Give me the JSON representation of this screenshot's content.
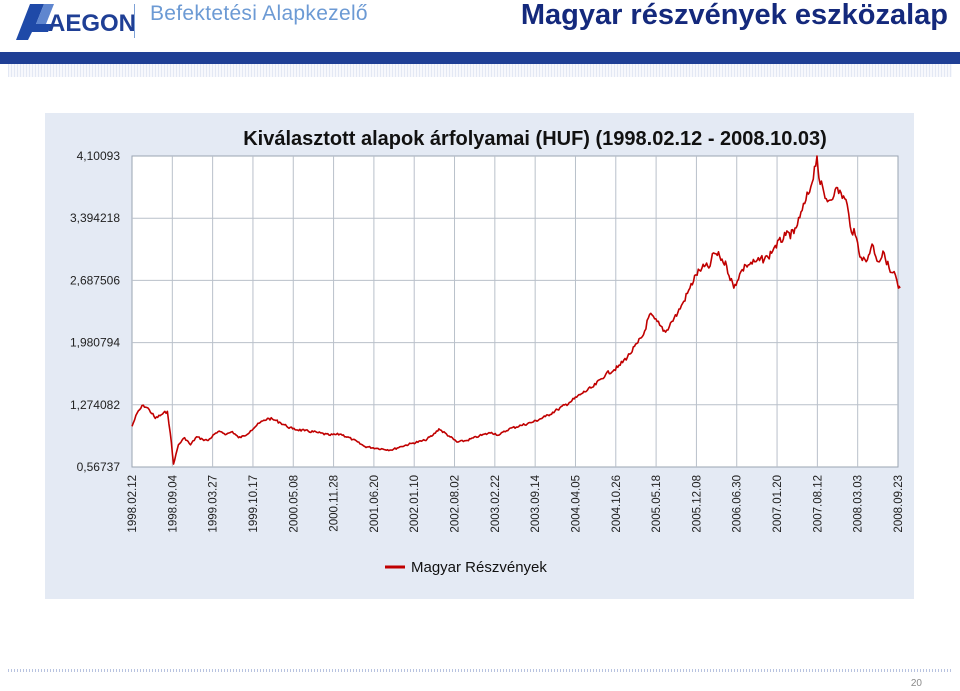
{
  "header": {
    "logo_text": "AEGON",
    "company": "Befektetési Alapkezelő",
    "title": "Magyar részvények eszközalap"
  },
  "footer": {
    "page_number": "20"
  },
  "colors": {
    "brand_blue": "#1f3f95",
    "series_red": "#c00000",
    "panel_bg": "#e4eaf4"
  },
  "chart_data": {
    "type": "line",
    "title": "Kiválasztott alapok árfolyamai (HUF) (1998.02.12 - 2008.10.03)",
    "xlabel": "",
    "ylabel": "",
    "ylim": [
      0.56737,
      4.10093
    ],
    "y_ticks": [
      "4,10093",
      "3,394218",
      "2,687506",
      "1,980794",
      "1,274082",
      "0,56737"
    ],
    "x_ticks": [
      "1998.02.12",
      "1998.09.04",
      "1999.03.27",
      "1999.10.17",
      "2000.05.08",
      "2000.11.28",
      "2001.06.20",
      "2002.01.10",
      "2002.08.02",
      "2003.02.22",
      "2003.09.14",
      "2004.04.05",
      "2004.10.26",
      "2005.05.18",
      "2005.12.08",
      "2006.06.30",
      "2007.01.20",
      "2007.08.12",
      "2008.03.03",
      "2008.09.23"
    ],
    "grid": true,
    "legend": "bottom-center",
    "series": [
      {
        "name": "Magyar Részvények",
        "color": "#c00000",
        "x": [
          "1998.02.12",
          "1998.03.10",
          "1998.04.10",
          "1998.05.10",
          "1998.06.10",
          "1998.07.10",
          "1998.08.10",
          "1998.08.25",
          "1998.09.10",
          "1998.10.05",
          "1998.11.05",
          "1998.12.05",
          "1999.01.05",
          "1999.02.05",
          "1999.03.05",
          "1999.04.05",
          "1999.05.05",
          "1999.06.05",
          "1999.07.05",
          "1999.08.05",
          "1999.09.05",
          "1999.10.05",
          "1999.11.05",
          "1999.12.05",
          "2000.01.05",
          "2000.02.05",
          "2000.03.05",
          "2000.04.05",
          "2000.05.05",
          "2000.07.05",
          "2000.09.05",
          "2000.11.05",
          "2001.01.05",
          "2001.03.05",
          "2001.05.05",
          "2001.07.05",
          "2001.09.15",
          "2001.11.05",
          "2002.01.05",
          "2002.03.05",
          "2002.04.15",
          "2002.05.15",
          "2002.07.05",
          "2002.08.15",
          "2002.10.05",
          "2002.12.05",
          "2003.02.05",
          "2003.03.15",
          "2003.05.05",
          "2003.07.05",
          "2003.09.05",
          "2003.11.05",
          "2004.01.05",
          "2004.03.05",
          "2004.05.05",
          "2004.07.05",
          "2004.09.05",
          "2004.11.05",
          "2005.01.05",
          "2005.02.15",
          "2005.03.15",
          "2005.04.15",
          "2005.06.05",
          "2005.07.05",
          "2005.08.05",
          "2005.09.05",
          "2005.10.05",
          "2005.11.05",
          "2005.12.05",
          "2006.01.05",
          "2006.02.15",
          "2006.03.05",
          "2006.04.05",
          "2006.05.10",
          "2006.06.15",
          "2006.07.15",
          "2006.08.15",
          "2006.10.05",
          "2006.12.05",
          "2007.01.05",
          "2007.03.05",
          "2007.04.15",
          "2007.05.15",
          "2007.06.15",
          "2007.07.10",
          "2007.08.10",
          "2007.08.20",
          "2007.09.20",
          "2007.10.15",
          "2007.11.10",
          "2007.12.10",
          "2008.01.10",
          "2008.01.25",
          "2008.02.20",
          "2008.03.20",
          "2008.04.15",
          "2008.05.15",
          "2008.06.15",
          "2008.07.15",
          "2008.08.15",
          "2008.09.10",
          "2008.09.25",
          "2008.10.03"
        ],
        "y": [
          1.03,
          1.18,
          1.27,
          1.22,
          1.12,
          1.16,
          1.2,
          0.95,
          0.6,
          0.82,
          0.9,
          0.82,
          0.91,
          0.88,
          0.87,
          0.94,
          0.97,
          0.94,
          0.97,
          0.9,
          0.92,
          0.98,
          1.04,
          1.09,
          1.12,
          1.1,
          1.07,
          1.03,
          1.0,
          0.98,
          0.96,
          0.93,
          0.94,
          0.88,
          0.8,
          0.78,
          0.76,
          0.8,
          0.84,
          0.87,
          0.93,
          1.0,
          0.92,
          0.85,
          0.87,
          0.92,
          0.96,
          0.93,
          1.0,
          1.04,
          1.08,
          1.14,
          1.22,
          1.3,
          1.4,
          1.48,
          1.62,
          1.7,
          1.85,
          1.98,
          2.07,
          2.3,
          2.18,
          2.1,
          2.22,
          2.32,
          2.45,
          2.6,
          2.75,
          2.83,
          2.85,
          3.0,
          2.96,
          2.85,
          2.6,
          2.76,
          2.86,
          2.9,
          2.95,
          3.06,
          3.2,
          3.22,
          3.4,
          3.6,
          3.75,
          4.1,
          3.85,
          3.62,
          3.6,
          3.72,
          3.68,
          3.55,
          3.3,
          3.2,
          2.95,
          2.9,
          3.1,
          2.9,
          3.0,
          2.78,
          2.75,
          2.6,
          2.6
        ]
      }
    ]
  }
}
